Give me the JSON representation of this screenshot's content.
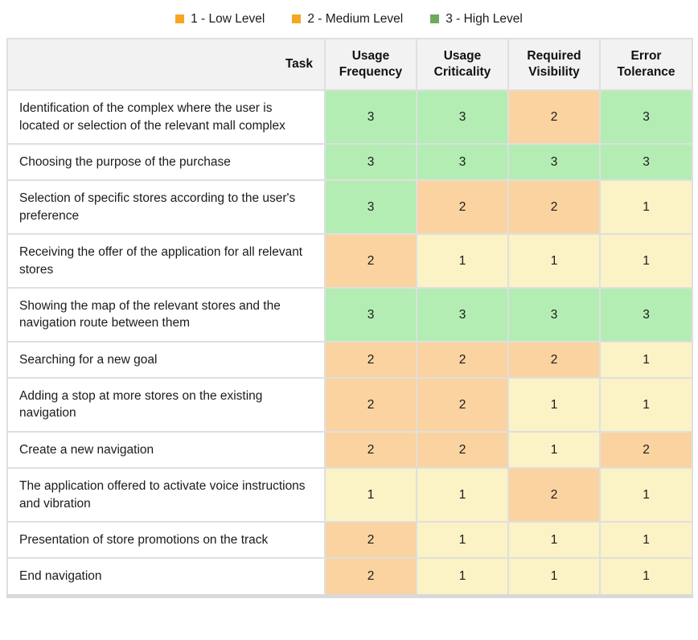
{
  "legend": {
    "items": [
      {
        "label": "1 - Low Level",
        "color": "#f7a622"
      },
      {
        "label": "2 - Medium Level",
        "color": "#f7a622"
      },
      {
        "label": "3 - High Level",
        "color": "#6cab5e"
      }
    ]
  },
  "table": {
    "columns": [
      "Task",
      "Usage Frequency",
      "Usage Criticality",
      "Required Visibility",
      "Error Tolerance"
    ],
    "level_colors": {
      "1": "#fbf2c5",
      "2": "#fad3a0",
      "3": "#b3edb3"
    },
    "rows": [
      {
        "task": "Identification of the complex where the user is located or selection of the relevant mall complex",
        "values": [
          3,
          3,
          2,
          3
        ]
      },
      {
        "task": "Choosing the purpose of the purchase",
        "values": [
          3,
          3,
          3,
          3
        ]
      },
      {
        "task": "Selection of specific stores according to the user's preference",
        "values": [
          3,
          2,
          2,
          1
        ]
      },
      {
        "task": "Receiving the offer of the application for all relevant stores",
        "values": [
          2,
          1,
          1,
          1
        ]
      },
      {
        "task": "Showing the map of the relevant stores and the navigation route between them",
        "values": [
          3,
          3,
          3,
          3
        ]
      },
      {
        "task": "Searching for a new goal",
        "values": [
          2,
          2,
          2,
          1
        ]
      },
      {
        "task": "Adding a stop at more stores on the existing navigation",
        "values": [
          2,
          2,
          1,
          1
        ]
      },
      {
        "task": "Create a new navigation",
        "values": [
          2,
          2,
          1,
          2
        ]
      },
      {
        "task": "The application offered to activate voice instructions and vibration",
        "values": [
          1,
          1,
          2,
          1
        ]
      },
      {
        "task": "Presentation of store promotions on the track",
        "values": [
          2,
          1,
          1,
          1
        ]
      },
      {
        "task": "End navigation",
        "values": [
          2,
          1,
          1,
          1
        ]
      }
    ]
  },
  "chart_data": {
    "type": "heatmap",
    "title": "",
    "columns": [
      "Usage Frequency",
      "Usage Criticality",
      "Required Visibility",
      "Error Tolerance"
    ],
    "rows": [
      "Identification of the complex where the user is located or selection of the relevant mall complex",
      "Choosing the purpose of the purchase",
      "Selection of specific stores according to the user's preference",
      "Receiving the offer of the application for all relevant stores",
      "Showing the map of the relevant stores and the navigation route between them",
      "Searching for a new goal",
      "Adding a stop at more stores on the existing navigation",
      "Create a new navigation",
      "The application offered to activate voice instructions and vibration",
      "Presentation of store promotions on the track",
      "End navigation"
    ],
    "values": [
      [
        3,
        3,
        2,
        3
      ],
      [
        3,
        3,
        3,
        3
      ],
      [
        3,
        2,
        2,
        1
      ],
      [
        2,
        1,
        1,
        1
      ],
      [
        3,
        3,
        3,
        3
      ],
      [
        2,
        2,
        2,
        1
      ],
      [
        2,
        2,
        1,
        1
      ],
      [
        2,
        2,
        1,
        2
      ],
      [
        1,
        1,
        2,
        1
      ],
      [
        2,
        1,
        1,
        1
      ],
      [
        2,
        1,
        1,
        1
      ]
    ],
    "scale": {
      "1": "Low Level",
      "2": "Medium Level",
      "3": "High Level"
    },
    "cell_colors": {
      "1": "#fbf2c5",
      "2": "#fad3a0",
      "3": "#b3edb3"
    },
    "legend_position": "top",
    "grid": true
  }
}
